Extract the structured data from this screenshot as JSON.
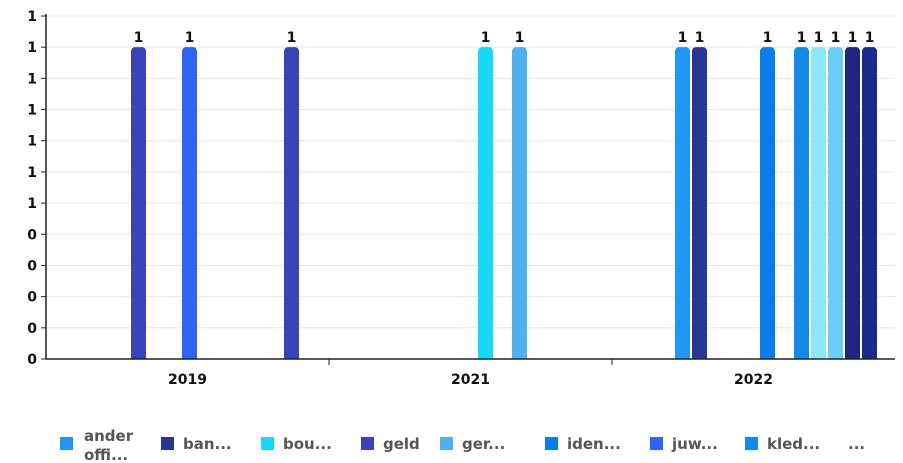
{
  "chart_data": {
    "type": "bar",
    "title": "",
    "xlabel": "",
    "ylabel": "",
    "ylim": [
      0,
      1
    ],
    "grid": true,
    "legend_position": "bottom",
    "y_tick_labels": [
      "0",
      "0",
      "0",
      "0",
      "0",
      "1",
      "1",
      "1",
      "1",
      "1",
      "1",
      "1"
    ],
    "categories": [
      "2019",
      "2021",
      "2022"
    ],
    "series": [
      {
        "name": "ander offi...",
        "color": "#2196f3",
        "values": [
          0,
          0,
          1
        ]
      },
      {
        "name": "ban...",
        "color": "#283593",
        "values": [
          0,
          0,
          1
        ]
      },
      {
        "name": "bou...",
        "color": "#18d8f8",
        "values": [
          0,
          1,
          0
        ]
      },
      {
        "name": "geld",
        "color": "#3a44b8",
        "values": [
          1,
          0,
          0
        ]
      },
      {
        "name": "ger...",
        "color": "#52aff0",
        "values": [
          0,
          1,
          0
        ]
      },
      {
        "name": "iden...",
        "color": "#0a7de8",
        "values": [
          0,
          0,
          1
        ]
      },
      {
        "name": "juw...",
        "color": "#2f63f5",
        "values": [
          1,
          0,
          0
        ]
      },
      {
        "name": "kled...",
        "color": "#1389ea",
        "values": [
          0,
          0,
          1
        ]
      },
      {
        "name": "...",
        "color": "#8de6f8",
        "values": [
          0,
          0,
          1
        ]
      },
      {
        "name": "",
        "color": "#6ccdf5",
        "values": [
          0,
          0,
          1
        ]
      },
      {
        "name": "",
        "color": "#1f2680",
        "values": [
          0,
          0,
          1
        ]
      },
      {
        "name": "",
        "color": "#1a2a8a",
        "values": [
          0,
          0,
          1
        ]
      },
      {
        "name": "",
        "color": "#3a44b8",
        "values": [
          1,
          0,
          0
        ]
      }
    ],
    "data_label": "1"
  }
}
